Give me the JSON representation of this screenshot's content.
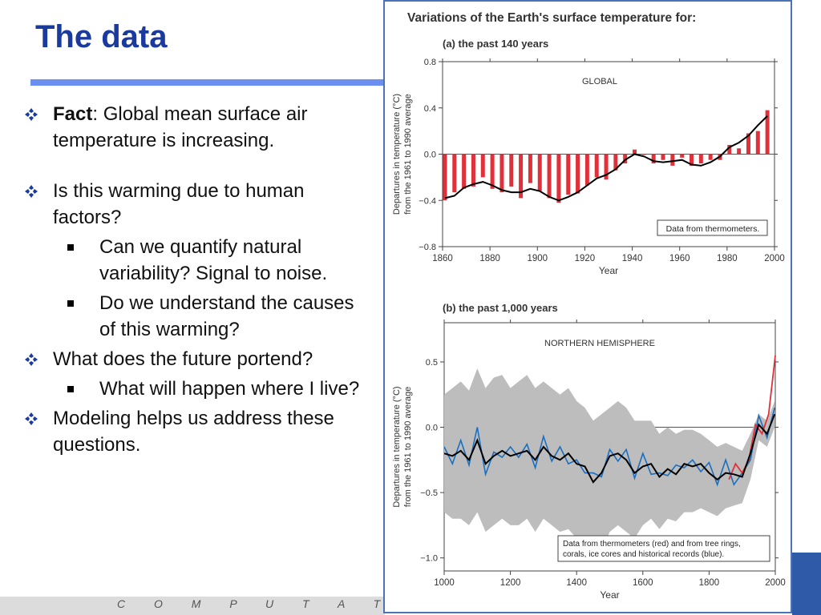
{
  "slide": {
    "title": "The data",
    "footer": "C O M P U T A T I O N A L R"
  },
  "bullets": {
    "b1_bold": "Fact",
    "b1_rest": ": Global mean surface air temperature is increasing.",
    "b2": "Is this warming due to human factors?",
    "b2_sub1": "Can we quantify natural variability? Signal to noise.",
    "b2_sub2": "Do we understand the causes of this warming?",
    "b3": "What does the future portend?",
    "b3_sub1": "What will happen where I live?",
    "b4": "Modeling helps us address these questions."
  },
  "figure": {
    "heading": "Variations of the Earth's surface temperature for:",
    "ylabel_line1": "Departures in temperature (°C)",
    "ylabel_line2": "from the 1961 to 1990 average",
    "xlabel": "Year"
  },
  "chart_data": [
    {
      "type": "bar",
      "title": "(a) the past 140 years",
      "region_label": "GLOBAL",
      "note": "Data from thermometers.",
      "xlabel": "Year",
      "ylabel": "Departures in temperature (°C) from the 1961 to 1990 average",
      "xlim": [
        1860,
        2000
      ],
      "ylim": [
        -0.8,
        0.8
      ],
      "xticks": [
        1860,
        1880,
        1900,
        1920,
        1940,
        1960,
        1980,
        2000
      ],
      "yticks": [
        -0.8,
        -0.4,
        0.0,
        0.4,
        0.8
      ],
      "ytick_labels": [
        "−0.8",
        "−0.4",
        "0.0",
        "0.4",
        "0.8"
      ],
      "bar_color": "#e0303a",
      "smooth_color": "#000000",
      "x": [
        1861,
        1865,
        1869,
        1873,
        1877,
        1881,
        1885,
        1889,
        1893,
        1897,
        1901,
        1905,
        1909,
        1913,
        1917,
        1921,
        1925,
        1929,
        1933,
        1937,
        1941,
        1945,
        1949,
        1953,
        1957,
        1961,
        1965,
        1969,
        1973,
        1977,
        1981,
        1985,
        1989,
        1993,
        1997
      ],
      "values": [
        -0.4,
        -0.33,
        -0.3,
        -0.28,
        -0.2,
        -0.3,
        -0.33,
        -0.28,
        -0.38,
        -0.25,
        -0.32,
        -0.38,
        -0.42,
        -0.35,
        -0.34,
        -0.27,
        -0.2,
        -0.22,
        -0.14,
        -0.08,
        0.04,
        0.0,
        -0.08,
        -0.05,
        -0.1,
        -0.03,
        -0.1,
        -0.08,
        -0.05,
        -0.05,
        0.08,
        0.05,
        0.18,
        0.2,
        0.38
      ],
      "smooth": [
        -0.38,
        -0.36,
        -0.29,
        -0.26,
        -0.24,
        -0.27,
        -0.31,
        -0.33,
        -0.33,
        -0.3,
        -0.32,
        -0.37,
        -0.4,
        -0.37,
        -0.33,
        -0.27,
        -0.21,
        -0.18,
        -0.13,
        -0.05,
        0.0,
        -0.02,
        -0.06,
        -0.07,
        -0.06,
        -0.05,
        -0.09,
        -0.1,
        -0.07,
        -0.02,
        0.06,
        0.1,
        0.16,
        0.25,
        0.33
      ]
    },
    {
      "type": "line",
      "title": "(b) the past 1,000 years",
      "region_label": "NORTHERN HEMISPHERE",
      "note_line1": "Data from thermometers (red) and from tree rings,",
      "note_line2": "corals, ice cores and historical records (blue).",
      "xlabel": "Year",
      "ylabel": "Departures in temperature (°C) from the 1961 to 1990 average",
      "xlim": [
        1000,
        2000
      ],
      "ylim": [
        -1.1,
        0.8
      ],
      "xticks": [
        1000,
        1200,
        1400,
        1600,
        1800,
        2000
      ],
      "yticks": [
        -1.0,
        -0.5,
        0.0,
        0.5
      ],
      "ytick_labels": [
        "−1.0",
        "−0.5",
        "0.0",
        "0.5"
      ],
      "uncertainty_color": "#bdbdbd",
      "proxy_color": "#1a6fc0",
      "thermometer_color": "#e0303a",
      "smooth_color": "#000000",
      "x": [
        1000,
        1025,
        1050,
        1075,
        1100,
        1125,
        1150,
        1175,
        1200,
        1225,
        1250,
        1275,
        1300,
        1325,
        1350,
        1375,
        1400,
        1425,
        1450,
        1475,
        1500,
        1525,
        1550,
        1575,
        1600,
        1625,
        1650,
        1675,
        1700,
        1725,
        1750,
        1775,
        1800,
        1825,
        1850,
        1875,
        1900,
        1925,
        1950,
        1975,
        1998
      ],
      "smooth": [
        -0.2,
        -0.22,
        -0.18,
        -0.25,
        -0.1,
        -0.28,
        -0.22,
        -0.18,
        -0.22,
        -0.2,
        -0.18,
        -0.25,
        -0.15,
        -0.22,
        -0.25,
        -0.2,
        -0.28,
        -0.3,
        -0.42,
        -0.35,
        -0.22,
        -0.2,
        -0.25,
        -0.35,
        -0.3,
        -0.28,
        -0.38,
        -0.32,
        -0.36,
        -0.28,
        -0.3,
        -0.28,
        -0.35,
        -0.4,
        -0.35,
        -0.36,
        -0.38,
        -0.2,
        0.02,
        -0.05,
        0.1
      ],
      "band_upper": [
        0.25,
        0.3,
        0.35,
        0.28,
        0.45,
        0.3,
        0.38,
        0.4,
        0.3,
        0.35,
        0.4,
        0.3,
        0.35,
        0.3,
        0.25,
        0.3,
        0.2,
        0.15,
        0.05,
        0.1,
        0.15,
        0.2,
        0.15,
        0.05,
        0.05,
        0.05,
        -0.05,
        0.0,
        -0.05,
        -0.02,
        -0.02,
        -0.05,
        -0.1,
        -0.15,
        -0.12,
        -0.15,
        -0.18,
        -0.05,
        0.1,
        0.05,
        0.2
      ],
      "band_lower": [
        -0.65,
        -0.7,
        -0.7,
        -0.75,
        -0.65,
        -0.8,
        -0.75,
        -0.7,
        -0.75,
        -0.75,
        -0.7,
        -0.8,
        -0.7,
        -0.75,
        -0.8,
        -0.78,
        -0.85,
        -0.9,
        -1.0,
        -0.95,
        -0.8,
        -0.75,
        -0.8,
        -0.85,
        -0.75,
        -0.7,
        -0.78,
        -0.7,
        -0.72,
        -0.65,
        -0.65,
        -0.62,
        -0.65,
        -0.68,
        -0.62,
        -0.6,
        -0.58,
        -0.4,
        -0.1,
        -0.15,
        0.0
      ],
      "thermometer_x": [
        1860,
        1880,
        1900,
        1920,
        1940,
        1960,
        1980,
        2000
      ],
      "thermometer": [
        -0.4,
        -0.28,
        -0.35,
        -0.25,
        0.02,
        -0.05,
        0.1,
        0.55
      ]
    }
  ]
}
